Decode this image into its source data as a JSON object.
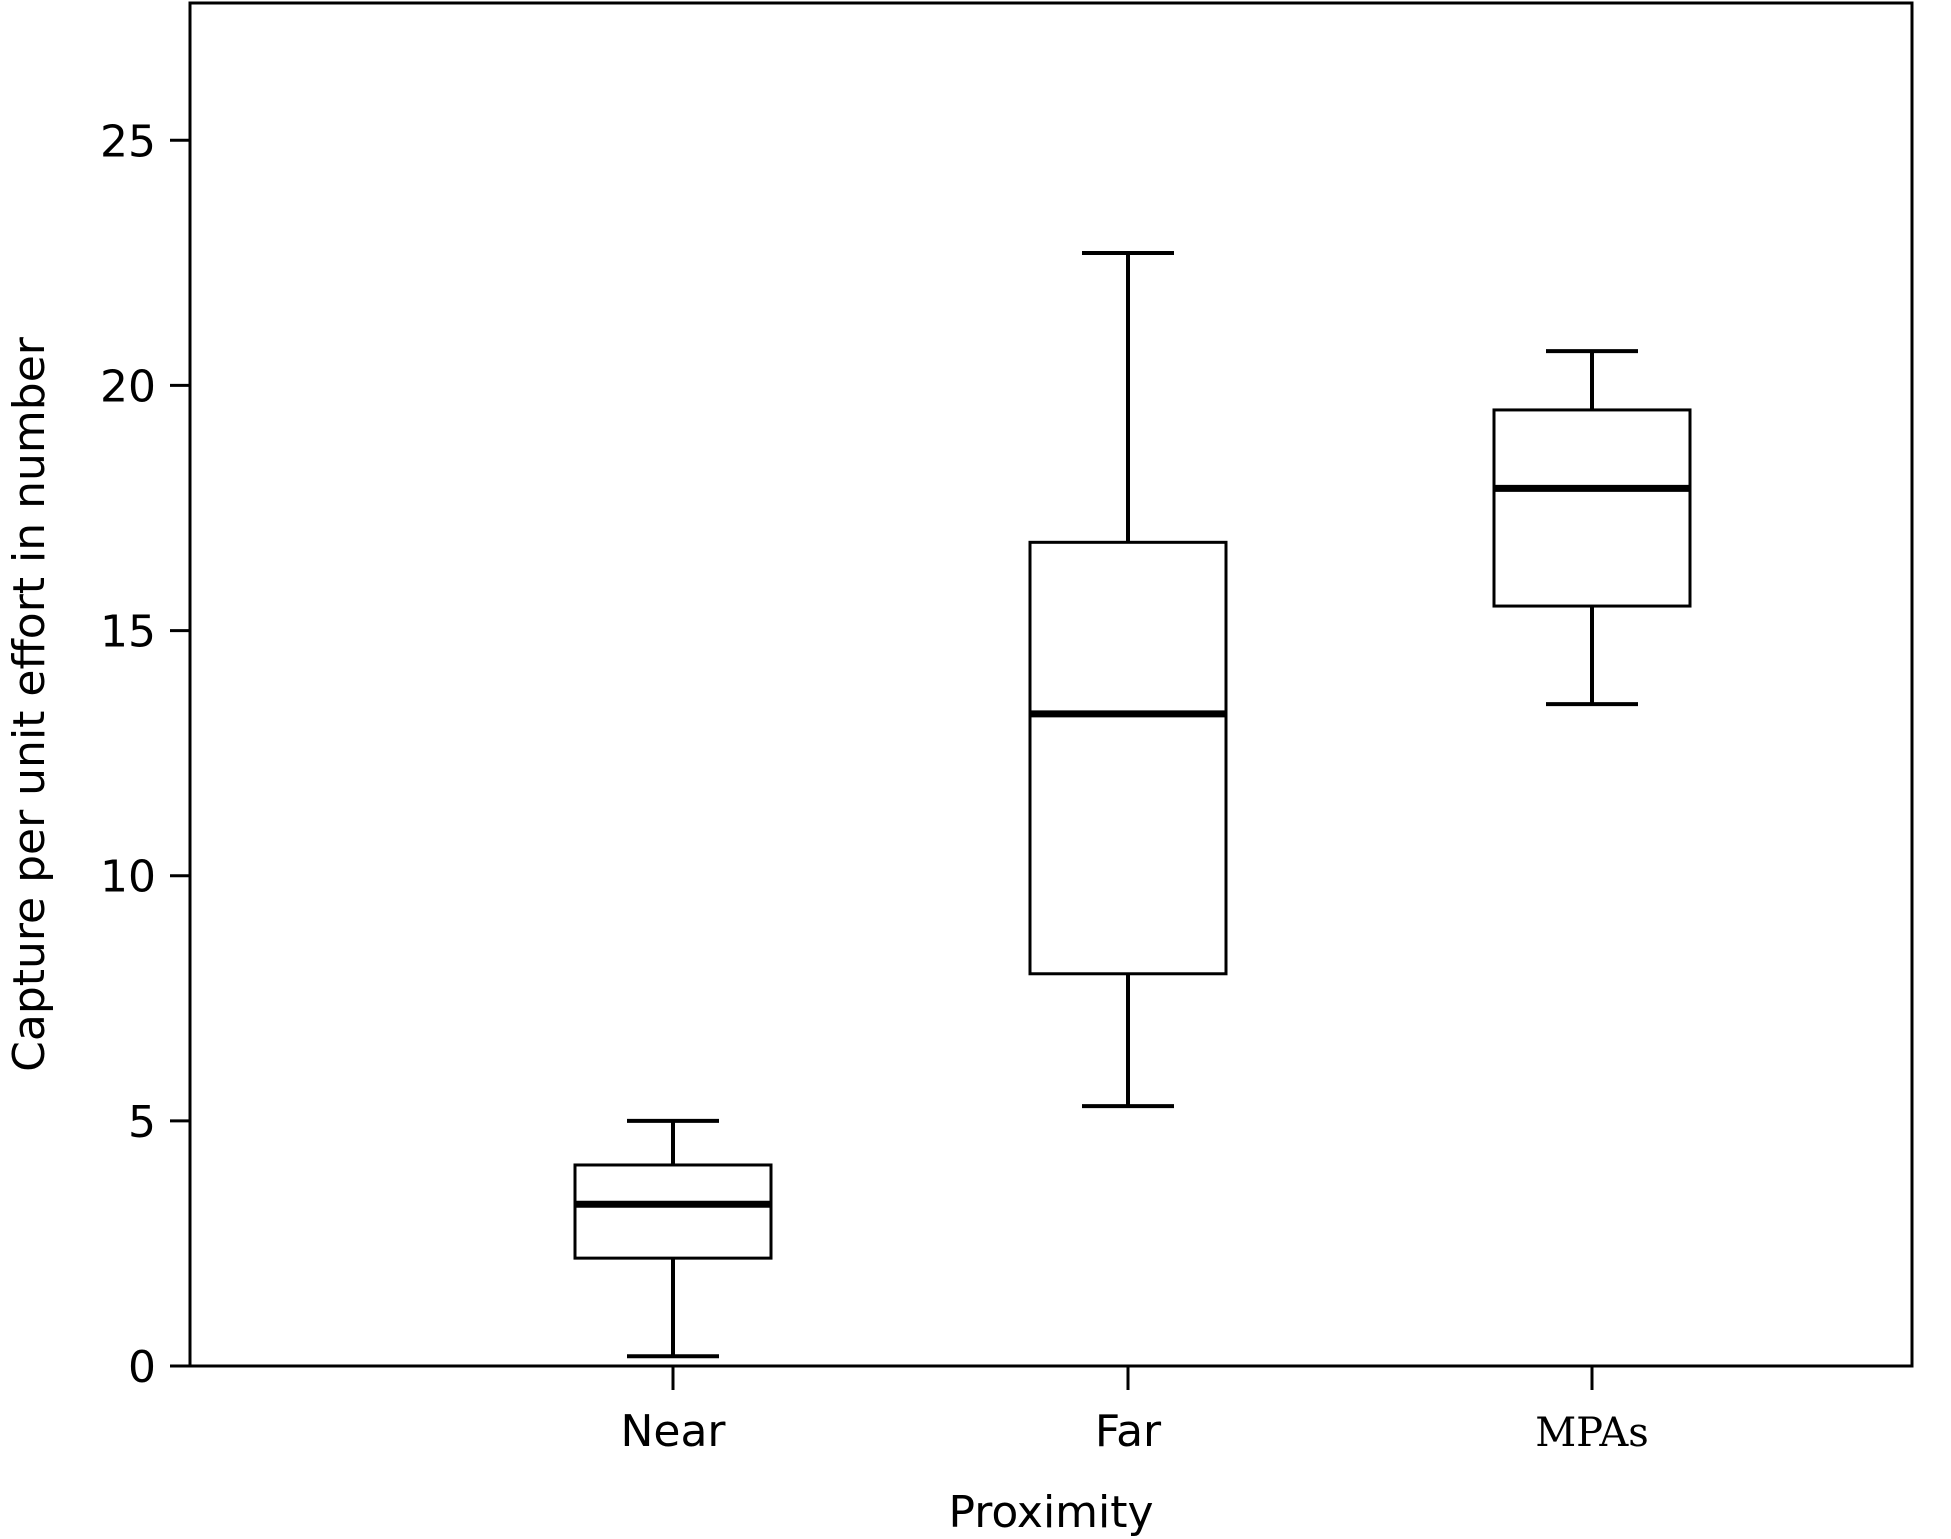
{
  "chart_data": {
    "type": "boxplot",
    "xlabel": "Proximity",
    "ylabel": "Capture per unit effort in number",
    "ylim": [
      0,
      27.8
    ],
    "yticks": [
      0,
      5,
      10,
      15,
      20,
      25
    ],
    "grid": false,
    "categories": [
      "Near",
      "Far",
      "MPAs"
    ],
    "boxes": [
      {
        "category": "Near",
        "min": 0.2,
        "q1": 2.2,
        "median": 3.3,
        "q3": 4.1,
        "max": 5.0
      },
      {
        "category": "Far",
        "min": 5.3,
        "q1": 8.0,
        "median": 13.3,
        "q3": 16.8,
        "max": 22.7
      },
      {
        "category": "MPAs",
        "min": 13.5,
        "q1": 15.5,
        "median": 17.9,
        "q3": 19.5,
        "max": 20.7
      }
    ]
  }
}
